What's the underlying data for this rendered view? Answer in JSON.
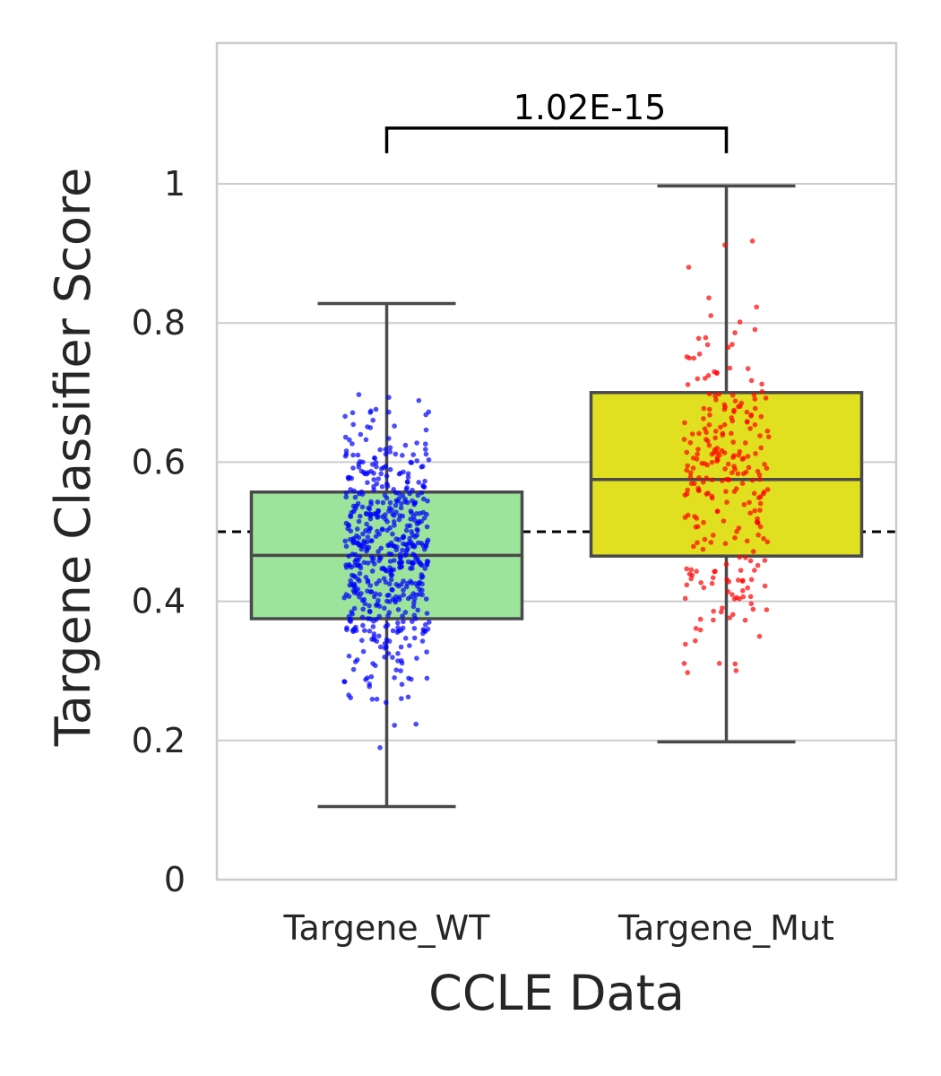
{
  "chart_data": {
    "type": "box",
    "xlabel": "CCLE Data",
    "ylabel": "Targene Classifier Score",
    "ylim": [
      0,
      1.2
    ],
    "yticks": [
      {
        "value": 0,
        "label": "0"
      },
      {
        "value": 0.2,
        "label": "0.2"
      },
      {
        "value": 0.4,
        "label": "0.4"
      },
      {
        "value": 0.6,
        "label": "0.6"
      },
      {
        "value": 0.8,
        "label": "0.8"
      },
      {
        "value": 1.0,
        "label": "1"
      }
    ],
    "grid": "horizontal",
    "reference_line": {
      "value": 0.5,
      "style": "dashed",
      "color": "#000000"
    },
    "categories": [
      "Targene_WT",
      "Targene_Mut"
    ],
    "boxes": [
      {
        "category": "Targene_WT",
        "whisker_low": 0.105,
        "q1": 0.375,
        "median": 0.466,
        "q3": 0.557,
        "whisker_high": 0.828,
        "box_color": "#9ce39c",
        "point_color": "#0000ff",
        "n_points": 560
      },
      {
        "category": "Targene_Mut",
        "whisker_low": 0.198,
        "q1": 0.465,
        "median": 0.575,
        "q3": 0.7,
        "whisker_high": 0.997,
        "box_color": "#e0df20",
        "point_color": "#ff0000",
        "n_points": 260
      }
    ],
    "annotation": {
      "text": "1.02E-15",
      "between": [
        "Targene_WT",
        "Targene_Mut"
      ],
      "y": 1.08
    }
  }
}
